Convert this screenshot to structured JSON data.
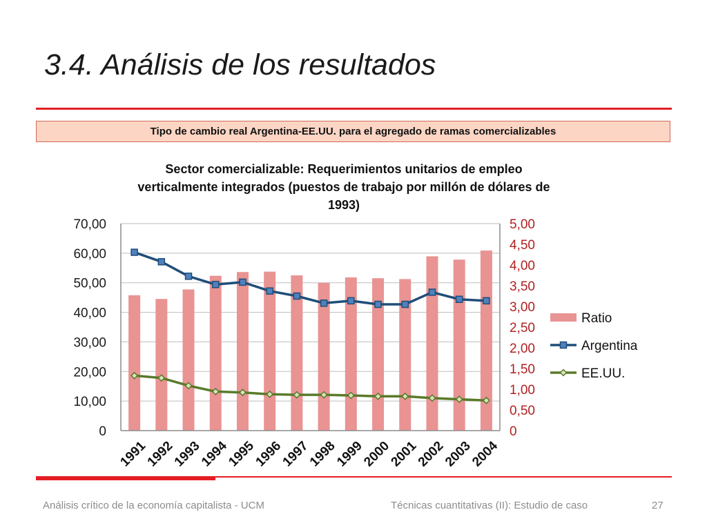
{
  "slide": {
    "title": "3.4.  Análisis de los resultados",
    "subtitle": "Tipo de cambio real Argentina-EE.UU. para el agregado de ramas comercializables",
    "footer_left": "Análisis crítico de la economía capitalista - UCM",
    "footer_center": "Técnicas cuantitativas (II): Estudio de caso",
    "page_number": "27"
  },
  "colors": {
    "accent_red": "#e31e24",
    "subtitle_fill": "#fcd5c4",
    "ratio_bar": "#e99393",
    "argentina_line": "#1f4e79",
    "argentina_marker": "#4f81bd",
    "eeuu_line": "#5a7a2a",
    "eeuu_marker": "#d7e4bd",
    "right_axis_text": "#b02020"
  },
  "chart_data": {
    "type": "bar",
    "title_lines": [
      "Sector comercializable: Requerimientos unitarios de empleo",
      "verticalmente integrados (puestos de trabajo por millón de dólares de",
      "1993)"
    ],
    "categories": [
      "1991",
      "1992",
      "1993",
      "1994",
      "1995",
      "1996",
      "1997",
      "1998",
      "1999",
      "2000",
      "2001",
      "2002",
      "2003",
      "2004"
    ],
    "y_left": {
      "range": [
        0,
        70
      ],
      "ticks": [
        "0",
        "10,00",
        "20,00",
        "30,00",
        "40,00",
        "50,00",
        "60,00",
        "70,00"
      ],
      "tick_values": [
        0,
        10,
        20,
        30,
        40,
        50,
        60,
        70
      ]
    },
    "y_right": {
      "range": [
        0,
        5
      ],
      "ticks": [
        "0",
        "0,50",
        "1,00",
        "1,50",
        "2,00",
        "2,50",
        "3,00",
        "3,50",
        "4,00",
        "4,50",
        "5,00"
      ],
      "tick_values": [
        0,
        0.5,
        1,
        1.5,
        2,
        2.5,
        3,
        3.5,
        4,
        4.5,
        5
      ]
    },
    "grid": true,
    "legend_position": "right",
    "series": [
      {
        "name": "Ratio",
        "kind": "bar",
        "axis": "right",
        "values": [
          3.27,
          3.18,
          3.41,
          3.74,
          3.83,
          3.84,
          3.75,
          3.57,
          3.7,
          3.68,
          3.66,
          4.21,
          4.13,
          4.35
        ]
      },
      {
        "name": "Argentina",
        "kind": "line",
        "axis": "left",
        "values": [
          60.3,
          57.1,
          52.2,
          49.4,
          50.2,
          47.2,
          45.5,
          43.1,
          43.9,
          42.7,
          42.7,
          46.8,
          44.4,
          43.9
        ]
      },
      {
        "name": "EE.UU.",
        "kind": "line",
        "axis": "left",
        "values": [
          18.6,
          17.8,
          15.2,
          13.2,
          12.9,
          12.3,
          12.1,
          12.1,
          11.9,
          11.6,
          11.6,
          11.0,
          10.6,
          10.2
        ]
      }
    ]
  }
}
